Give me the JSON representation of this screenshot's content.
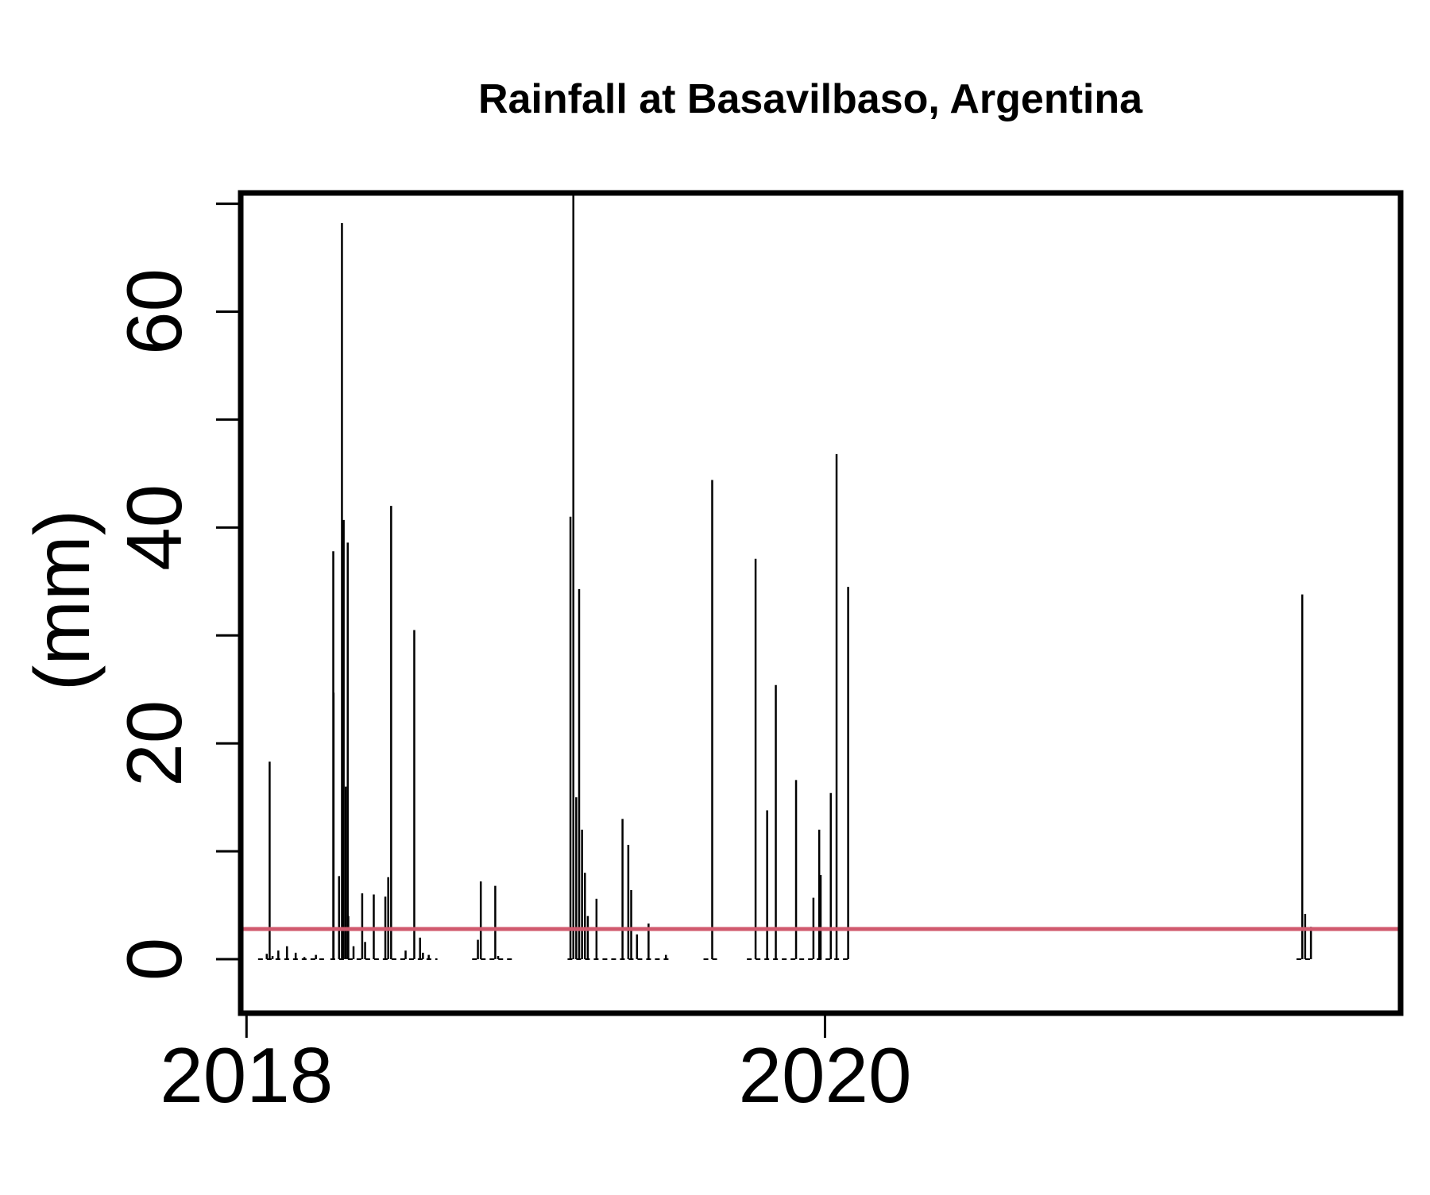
{
  "chart_data": {
    "type": "bar",
    "title": "Rainfall at Basavilbaso, Argentina",
    "xlabel": "",
    "ylabel": "(mm)",
    "x_ticks": [
      2018,
      2020
    ],
    "x_tick_labels": [
      "2018",
      "2020"
    ],
    "y_ticks": [
      0,
      20,
      40,
      60
    ],
    "y_tick_labels": [
      "0",
      "20",
      "40",
      "60"
    ],
    "y_minor_ticks": [
      10,
      30,
      50,
      70
    ],
    "xlim": [
      2017.98,
      2021.99
    ],
    "ylim": [
      -5,
      71
    ],
    "grid": false,
    "threshold": {
      "value": 2.8,
      "color": "#d05a6e"
    },
    "bar_color": "#000000",
    "x": [
      2018.07,
      2018.08,
      2018.09,
      2018.11,
      2018.14,
      2018.17,
      2018.2,
      2018.24,
      2018.3,
      2018.301,
      2018.32,
      2018.33,
      2018.336,
      2018.343,
      2018.35,
      2018.352,
      2018.37,
      2018.4,
      2018.41,
      2018.44,
      2018.48,
      2018.49,
      2018.5,
      2018.55,
      2018.58,
      2018.6,
      2018.61,
      2018.63,
      2018.8,
      2018.81,
      2018.86,
      2018.87,
      2019.12,
      2019.13,
      2019.14,
      2019.15,
      2019.16,
      2019.17,
      2019.18,
      2019.21,
      2019.3,
      2019.32,
      2019.33,
      2019.35,
      2019.39,
      2019.45,
      2019.61,
      2019.76,
      2019.8,
      2019.83,
      2019.9,
      2019.96,
      2019.98,
      2019.985,
      2020.02,
      2020.04,
      2020.08,
      2021.65,
      2021.66,
      2021.68
    ],
    "values": [
      0.5,
      18.3,
      0.3,
      0.8,
      1.2,
      0.6,
      0.2,
      0.4,
      37.8,
      24.7,
      7.7,
      68.2,
      40.7,
      16.0,
      38.6,
      4.0,
      1.2,
      6.1,
      1.6,
      6.0,
      5.8,
      7.6,
      42.0,
      0.8,
      30.5,
      2.0,
      0.6,
      0.4,
      1.8,
      7.2,
      6.8,
      0.3,
      41.0,
      71.2,
      15.0,
      34.3,
      12.0,
      8.0,
      4.0,
      5.6,
      13.0,
      10.6,
      6.4,
      2.3,
      3.3,
      0.4,
      44.4,
      37.1,
      13.8,
      25.4,
      16.6,
      5.7,
      12.0,
      7.8,
      15.4,
      46.8,
      34.5,
      33.8,
      4.2,
      3.0
    ]
  }
}
